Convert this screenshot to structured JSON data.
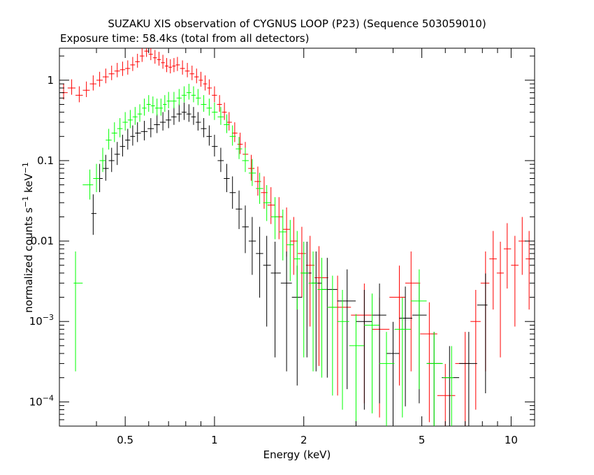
{
  "chart_data": {
    "type": "scatter",
    "title": "SUZAKU XIS observation of CYGNUS LOOP (P23) (Sequence 503059010)",
    "subtitle": "Exposure time: 58.4ks (total from all detectors)",
    "xlabel": "Energy (keV)",
    "ylabel_main": "normalized counts s",
    "ylabel_sup1": "−1",
    "ylabel_mid": " keV",
    "ylabel_sup2": "−1",
    "x_scale": "log",
    "y_scale": "log",
    "xlim": [
      0.3,
      12
    ],
    "ylim": [
      5e-05,
      2.5
    ],
    "x_ticks": [
      {
        "value": 0.5,
        "label": "0.5"
      },
      {
        "value": 1,
        "label": "1"
      },
      {
        "value": 2,
        "label": "2"
      },
      {
        "value": 5,
        "label": "5"
      },
      {
        "value": 10,
        "label": "10"
      }
    ],
    "y_ticks": [
      {
        "value": 1,
        "label": "1"
      },
      {
        "value": 0.1,
        "label": "0.1"
      },
      {
        "value": 0.01,
        "label": "0.01"
      },
      {
        "value": 0.001,
        "label_base": "10",
        "label_exp": "−3"
      },
      {
        "value": 0.0001,
        "label_base": "10",
        "label_exp": "−4"
      }
    ],
    "grid": false,
    "legend": "none",
    "series": [
      {
        "color": "#ff0000",
        "points": [
          [
            0.31,
            0.7
          ],
          [
            0.33,
            0.8
          ],
          [
            0.35,
            0.65
          ],
          [
            0.37,
            0.75
          ],
          [
            0.39,
            0.9
          ],
          [
            0.41,
            1.0
          ],
          [
            0.43,
            1.1
          ],
          [
            0.45,
            1.2
          ],
          [
            0.47,
            1.3
          ],
          [
            0.49,
            1.35
          ],
          [
            0.51,
            1.4
          ],
          [
            0.53,
            1.55
          ],
          [
            0.55,
            1.7
          ],
          [
            0.57,
            2.0
          ],
          [
            0.59,
            2.3
          ],
          [
            0.61,
            2.1
          ],
          [
            0.63,
            1.9
          ],
          [
            0.65,
            1.8
          ],
          [
            0.67,
            1.65
          ],
          [
            0.69,
            1.5
          ],
          [
            0.71,
            1.45
          ],
          [
            0.73,
            1.5
          ],
          [
            0.75,
            1.55
          ],
          [
            0.78,
            1.4
          ],
          [
            0.81,
            1.3
          ],
          [
            0.84,
            1.2
          ],
          [
            0.87,
            1.1
          ],
          [
            0.9,
            1.0
          ],
          [
            0.93,
            0.9
          ],
          [
            0.96,
            0.8
          ],
          [
            1.0,
            0.65
          ],
          [
            1.04,
            0.5
          ],
          [
            1.08,
            0.4
          ],
          [
            1.12,
            0.3
          ],
          [
            1.17,
            0.22
          ],
          [
            1.22,
            0.16
          ],
          [
            1.27,
            0.12
          ],
          [
            1.33,
            0.08
          ],
          [
            1.4,
            0.055
          ],
          [
            1.47,
            0.04
          ],
          [
            1.55,
            0.028
          ],
          [
            1.65,
            0.02
          ],
          [
            1.75,
            0.014
          ],
          [
            1.85,
            0.01
          ],
          [
            1.97,
            0.007
          ],
          [
            2.1,
            0.005
          ],
          [
            2.25,
            0.0035
          ],
          [
            2.6,
            0.0015
          ],
          [
            3.2,
            0.0012
          ],
          [
            3.6,
            0.0008
          ],
          [
            4.2,
            0.002
          ],
          [
            4.6,
            0.003
          ],
          [
            5.3,
            0.0007
          ],
          [
            6.0,
            0.00012
          ],
          [
            7.0,
            0.0003
          ],
          [
            7.6,
            0.001
          ],
          [
            8.2,
            0.003
          ],
          [
            8.7,
            0.006
          ],
          [
            9.2,
            0.004
          ],
          [
            9.7,
            0.008
          ],
          [
            10.3,
            0.005
          ],
          [
            10.9,
            0.01
          ],
          [
            11.5,
            0.006
          ]
        ]
      },
      {
        "color": "#000000",
        "points": [
          [
            0.39,
            0.022
          ],
          [
            0.41,
            0.06
          ],
          [
            0.43,
            0.08
          ],
          [
            0.45,
            0.1
          ],
          [
            0.47,
            0.12
          ],
          [
            0.49,
            0.15
          ],
          [
            0.51,
            0.18
          ],
          [
            0.53,
            0.2
          ],
          [
            0.55,
            0.22
          ],
          [
            0.58,
            0.23
          ],
          [
            0.61,
            0.25
          ],
          [
            0.64,
            0.28
          ],
          [
            0.67,
            0.3
          ],
          [
            0.7,
            0.32
          ],
          [
            0.73,
            0.35
          ],
          [
            0.76,
            0.38
          ],
          [
            0.79,
            0.4
          ],
          [
            0.82,
            0.38
          ],
          [
            0.85,
            0.35
          ],
          [
            0.88,
            0.3
          ],
          [
            0.92,
            0.25
          ],
          [
            0.96,
            0.2
          ],
          [
            1.0,
            0.15
          ],
          [
            1.05,
            0.1
          ],
          [
            1.1,
            0.06
          ],
          [
            1.15,
            0.04
          ],
          [
            1.21,
            0.025
          ],
          [
            1.27,
            0.015
          ],
          [
            1.34,
            0.01
          ],
          [
            1.42,
            0.007
          ],
          [
            1.5,
            0.005
          ],
          [
            1.6,
            0.004
          ],
          [
            1.75,
            0.003
          ],
          [
            1.9,
            0.002
          ],
          [
            2.05,
            0.004
          ],
          [
            2.2,
            0.003
          ],
          [
            2.4,
            0.0025
          ],
          [
            2.8,
            0.0018
          ],
          [
            3.2,
            0.001
          ],
          [
            3.6,
            0.0012
          ],
          [
            4.0,
            0.0004
          ],
          [
            4.4,
            0.0011
          ],
          [
            4.9,
            0.0012
          ],
          [
            5.5,
            0.0003
          ],
          [
            6.2,
            0.0002
          ],
          [
            7.2,
            0.0003
          ],
          [
            8.2,
            0.0016
          ]
        ]
      },
      {
        "color": "#00ff00",
        "points": [
          [
            0.34,
            0.003
          ],
          [
            0.38,
            0.05
          ],
          [
            0.4,
            0.06
          ],
          [
            0.42,
            0.1
          ],
          [
            0.44,
            0.18
          ],
          [
            0.46,
            0.22
          ],
          [
            0.48,
            0.25
          ],
          [
            0.5,
            0.3
          ],
          [
            0.52,
            0.32
          ],
          [
            0.54,
            0.35
          ],
          [
            0.56,
            0.38
          ],
          [
            0.58,
            0.45
          ],
          [
            0.6,
            0.5
          ],
          [
            0.62,
            0.48
          ],
          [
            0.64,
            0.45
          ],
          [
            0.66,
            0.45
          ],
          [
            0.68,
            0.5
          ],
          [
            0.7,
            0.55
          ],
          [
            0.73,
            0.55
          ],
          [
            0.76,
            0.6
          ],
          [
            0.79,
            0.65
          ],
          [
            0.82,
            0.7
          ],
          [
            0.85,
            0.65
          ],
          [
            0.88,
            0.6
          ],
          [
            0.92,
            0.5
          ],
          [
            0.96,
            0.45
          ],
          [
            1.0,
            0.4
          ],
          [
            1.05,
            0.35
          ],
          [
            1.1,
            0.28
          ],
          [
            1.15,
            0.2
          ],
          [
            1.21,
            0.14
          ],
          [
            1.27,
            0.1
          ],
          [
            1.34,
            0.07
          ],
          [
            1.42,
            0.045
          ],
          [
            1.5,
            0.03
          ],
          [
            1.6,
            0.02
          ],
          [
            1.7,
            0.013
          ],
          [
            1.8,
            0.009
          ],
          [
            1.9,
            0.006
          ],
          [
            2.0,
            0.004
          ],
          [
            2.15,
            0.003
          ],
          [
            2.3,
            0.0025
          ],
          [
            2.5,
            0.0015
          ],
          [
            2.7,
            0.001
          ],
          [
            3.0,
            0.0005
          ],
          [
            3.4,
            0.0009
          ],
          [
            3.8,
            0.0003
          ],
          [
            4.3,
            0.0008
          ],
          [
            4.9,
            0.0018
          ],
          [
            5.5,
            0.0003
          ],
          [
            6.3,
            0.0002
          ]
        ]
      }
    ]
  }
}
